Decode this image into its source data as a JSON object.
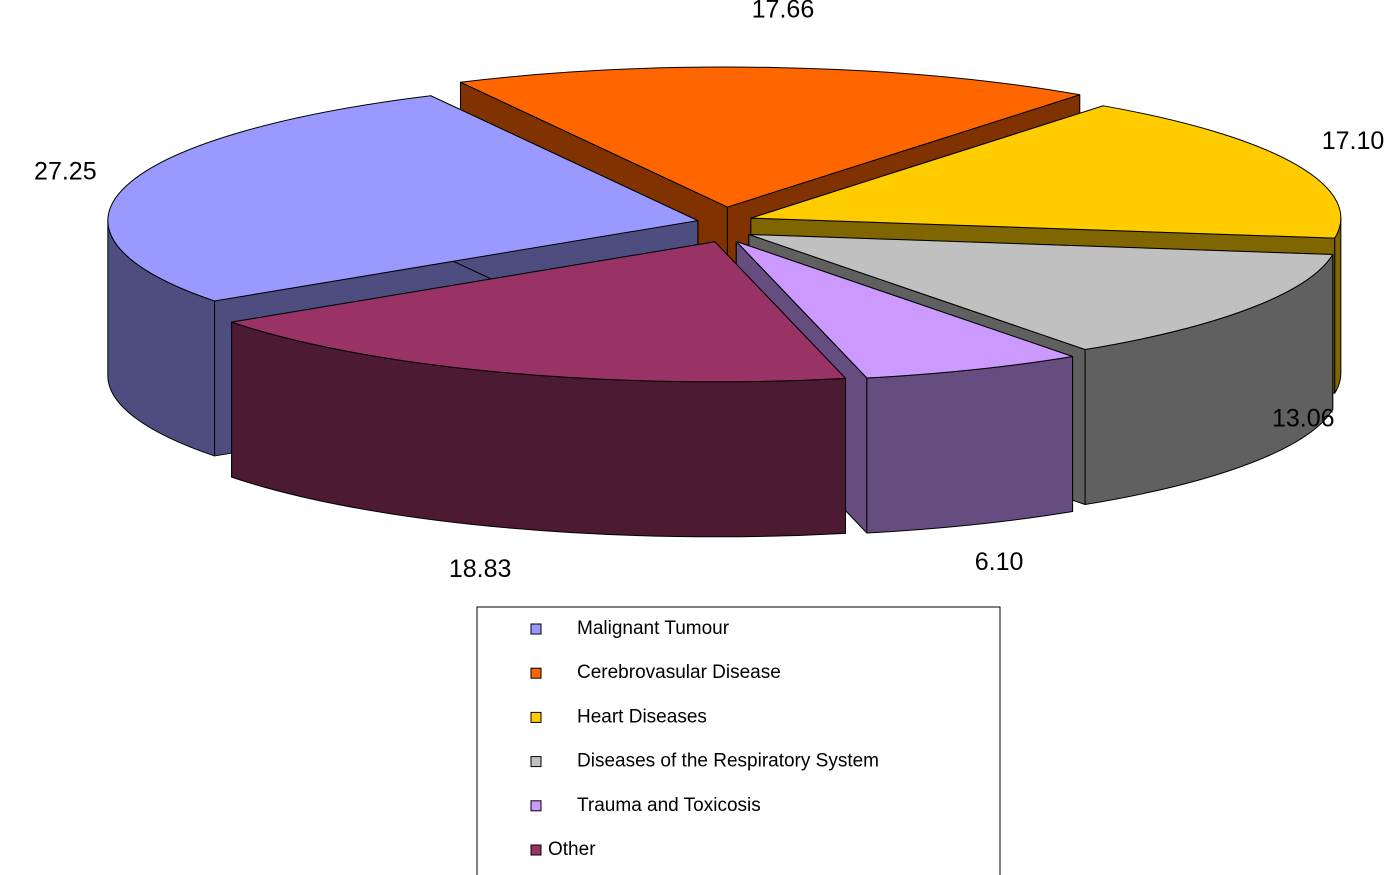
{
  "chart_data": {
    "type": "pie",
    "categories": [
      "Malignant Tumour",
      "Cerebrovasular Disease",
      "Heart Diseases",
      "Diseases of the Respiratory System",
      "Trauma and Toxicosis",
      "Other"
    ],
    "values": [
      27.25,
      17.66,
      17.1,
      13.06,
      6.1,
      18.83
    ],
    "value_labels": [
      "27.25",
      "17.66",
      "17.10",
      "13.06",
      "6.10",
      "18.83"
    ],
    "colors": [
      "#9999ff",
      "#ff6600",
      "#ffcc00",
      "#c0c0c0",
      "#cc99ff",
      "#993366"
    ]
  }
}
